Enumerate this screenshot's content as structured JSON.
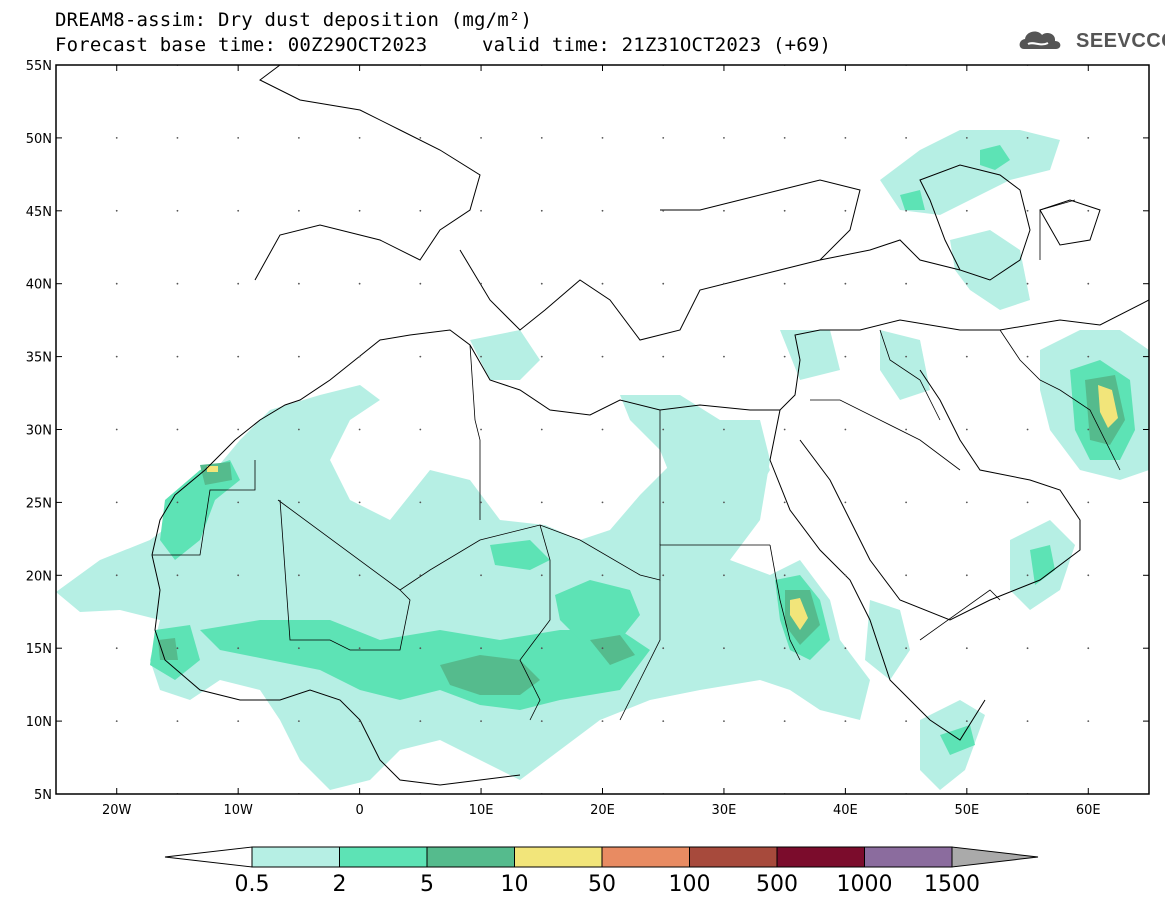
{
  "title": {
    "line1": "DREAM8-assim: Dry dust deposition (mg/m²)",
    "line2": "Forecast base time: 00Z29OCT2023",
    "line3": "valid time: 21Z31OCT2023 (+69)"
  },
  "logo": {
    "text": "SEEVCCC",
    "icon": "cloud-logo-icon"
  },
  "map": {
    "lon_range": [
      -25,
      65
    ],
    "lat_range": [
      5,
      55
    ],
    "lon_ticks": [
      {
        "value": -20,
        "label": "20W"
      },
      {
        "value": -10,
        "label": "10W"
      },
      {
        "value": 0,
        "label": "0"
      },
      {
        "value": 10,
        "label": "10E"
      },
      {
        "value": 20,
        "label": "20E"
      },
      {
        "value": 30,
        "label": "30E"
      },
      {
        "value": 40,
        "label": "40E"
      },
      {
        "value": 50,
        "label": "50E"
      },
      {
        "value": 60,
        "label": "60E"
      }
    ],
    "lat_ticks": [
      {
        "value": 55,
        "label": "55N"
      },
      {
        "value": 50,
        "label": "50N"
      },
      {
        "value": 45,
        "label": "45N"
      },
      {
        "value": 40,
        "label": "40N"
      },
      {
        "value": 35,
        "label": "35N"
      },
      {
        "value": 30,
        "label": "30N"
      },
      {
        "value": 25,
        "label": "25N"
      },
      {
        "value": 20,
        "label": "20N"
      },
      {
        "value": 15,
        "label": "15N"
      },
      {
        "value": 10,
        "label": "10N"
      },
      {
        "value": 5,
        "label": "5N"
      }
    ],
    "grid": "dotted"
  },
  "colorbar": {
    "labels": [
      "0.5",
      "2",
      "5",
      "10",
      "50",
      "100",
      "500",
      "1000",
      "1500"
    ],
    "colors": [
      "#b6efe4",
      "#5de3b5",
      "#55bb8d",
      "#f2e57a",
      "#e88b62",
      "#a74a3c",
      "#7b0c2c",
      "#8b6c9e"
    ],
    "under_color": "#ffffff",
    "over_color": "#aaaaaa"
  }
}
